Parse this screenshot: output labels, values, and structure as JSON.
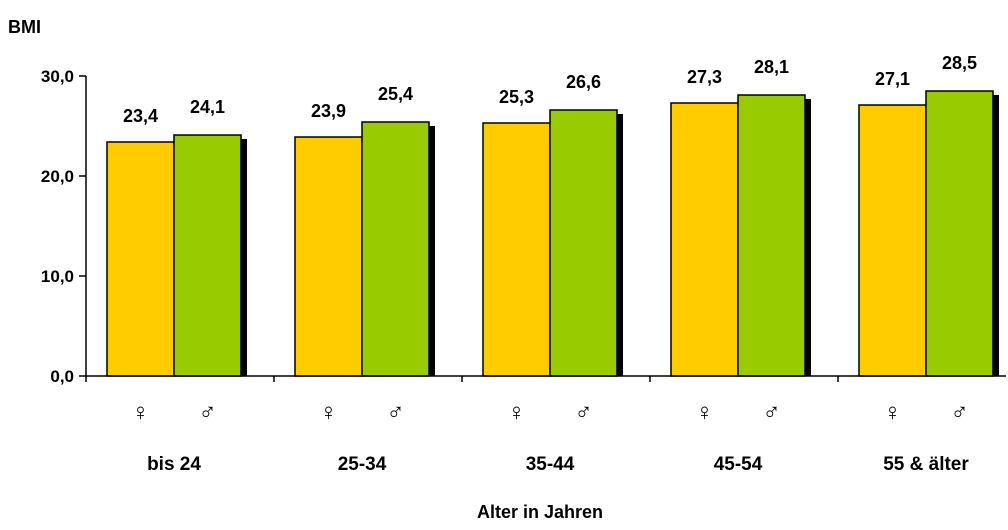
{
  "chart_data": {
    "type": "bar",
    "title": "",
    "ylabel": "BMI",
    "xlabel": "Alter in Jahren",
    "categories": [
      "bis 24",
      "25-34",
      "35-44",
      "45-54",
      "55 & älter"
    ],
    "series": [
      {
        "name": "♀",
        "color": "#ffcc00",
        "values": [
          23.4,
          23.9,
          25.3,
          27.3,
          27.1
        ],
        "labels": [
          "23,4",
          "23,9",
          "25,3",
          "27,3",
          "27,1"
        ]
      },
      {
        "name": "♂",
        "color": "#99cc00",
        "values": [
          24.1,
          25.4,
          26.6,
          28.1,
          28.5
        ],
        "labels": [
          "24,1",
          "25,4",
          "26,6",
          "28,1",
          "28,5"
        ]
      }
    ],
    "ylim": [
      0,
      30
    ],
    "yticks": [
      0,
      10,
      20,
      30
    ],
    "ytick_labels": [
      "0,0",
      "10,0",
      "20,0",
      "30,0"
    ],
    "grid": false,
    "legend": "none",
    "bar_shadow": true
  }
}
